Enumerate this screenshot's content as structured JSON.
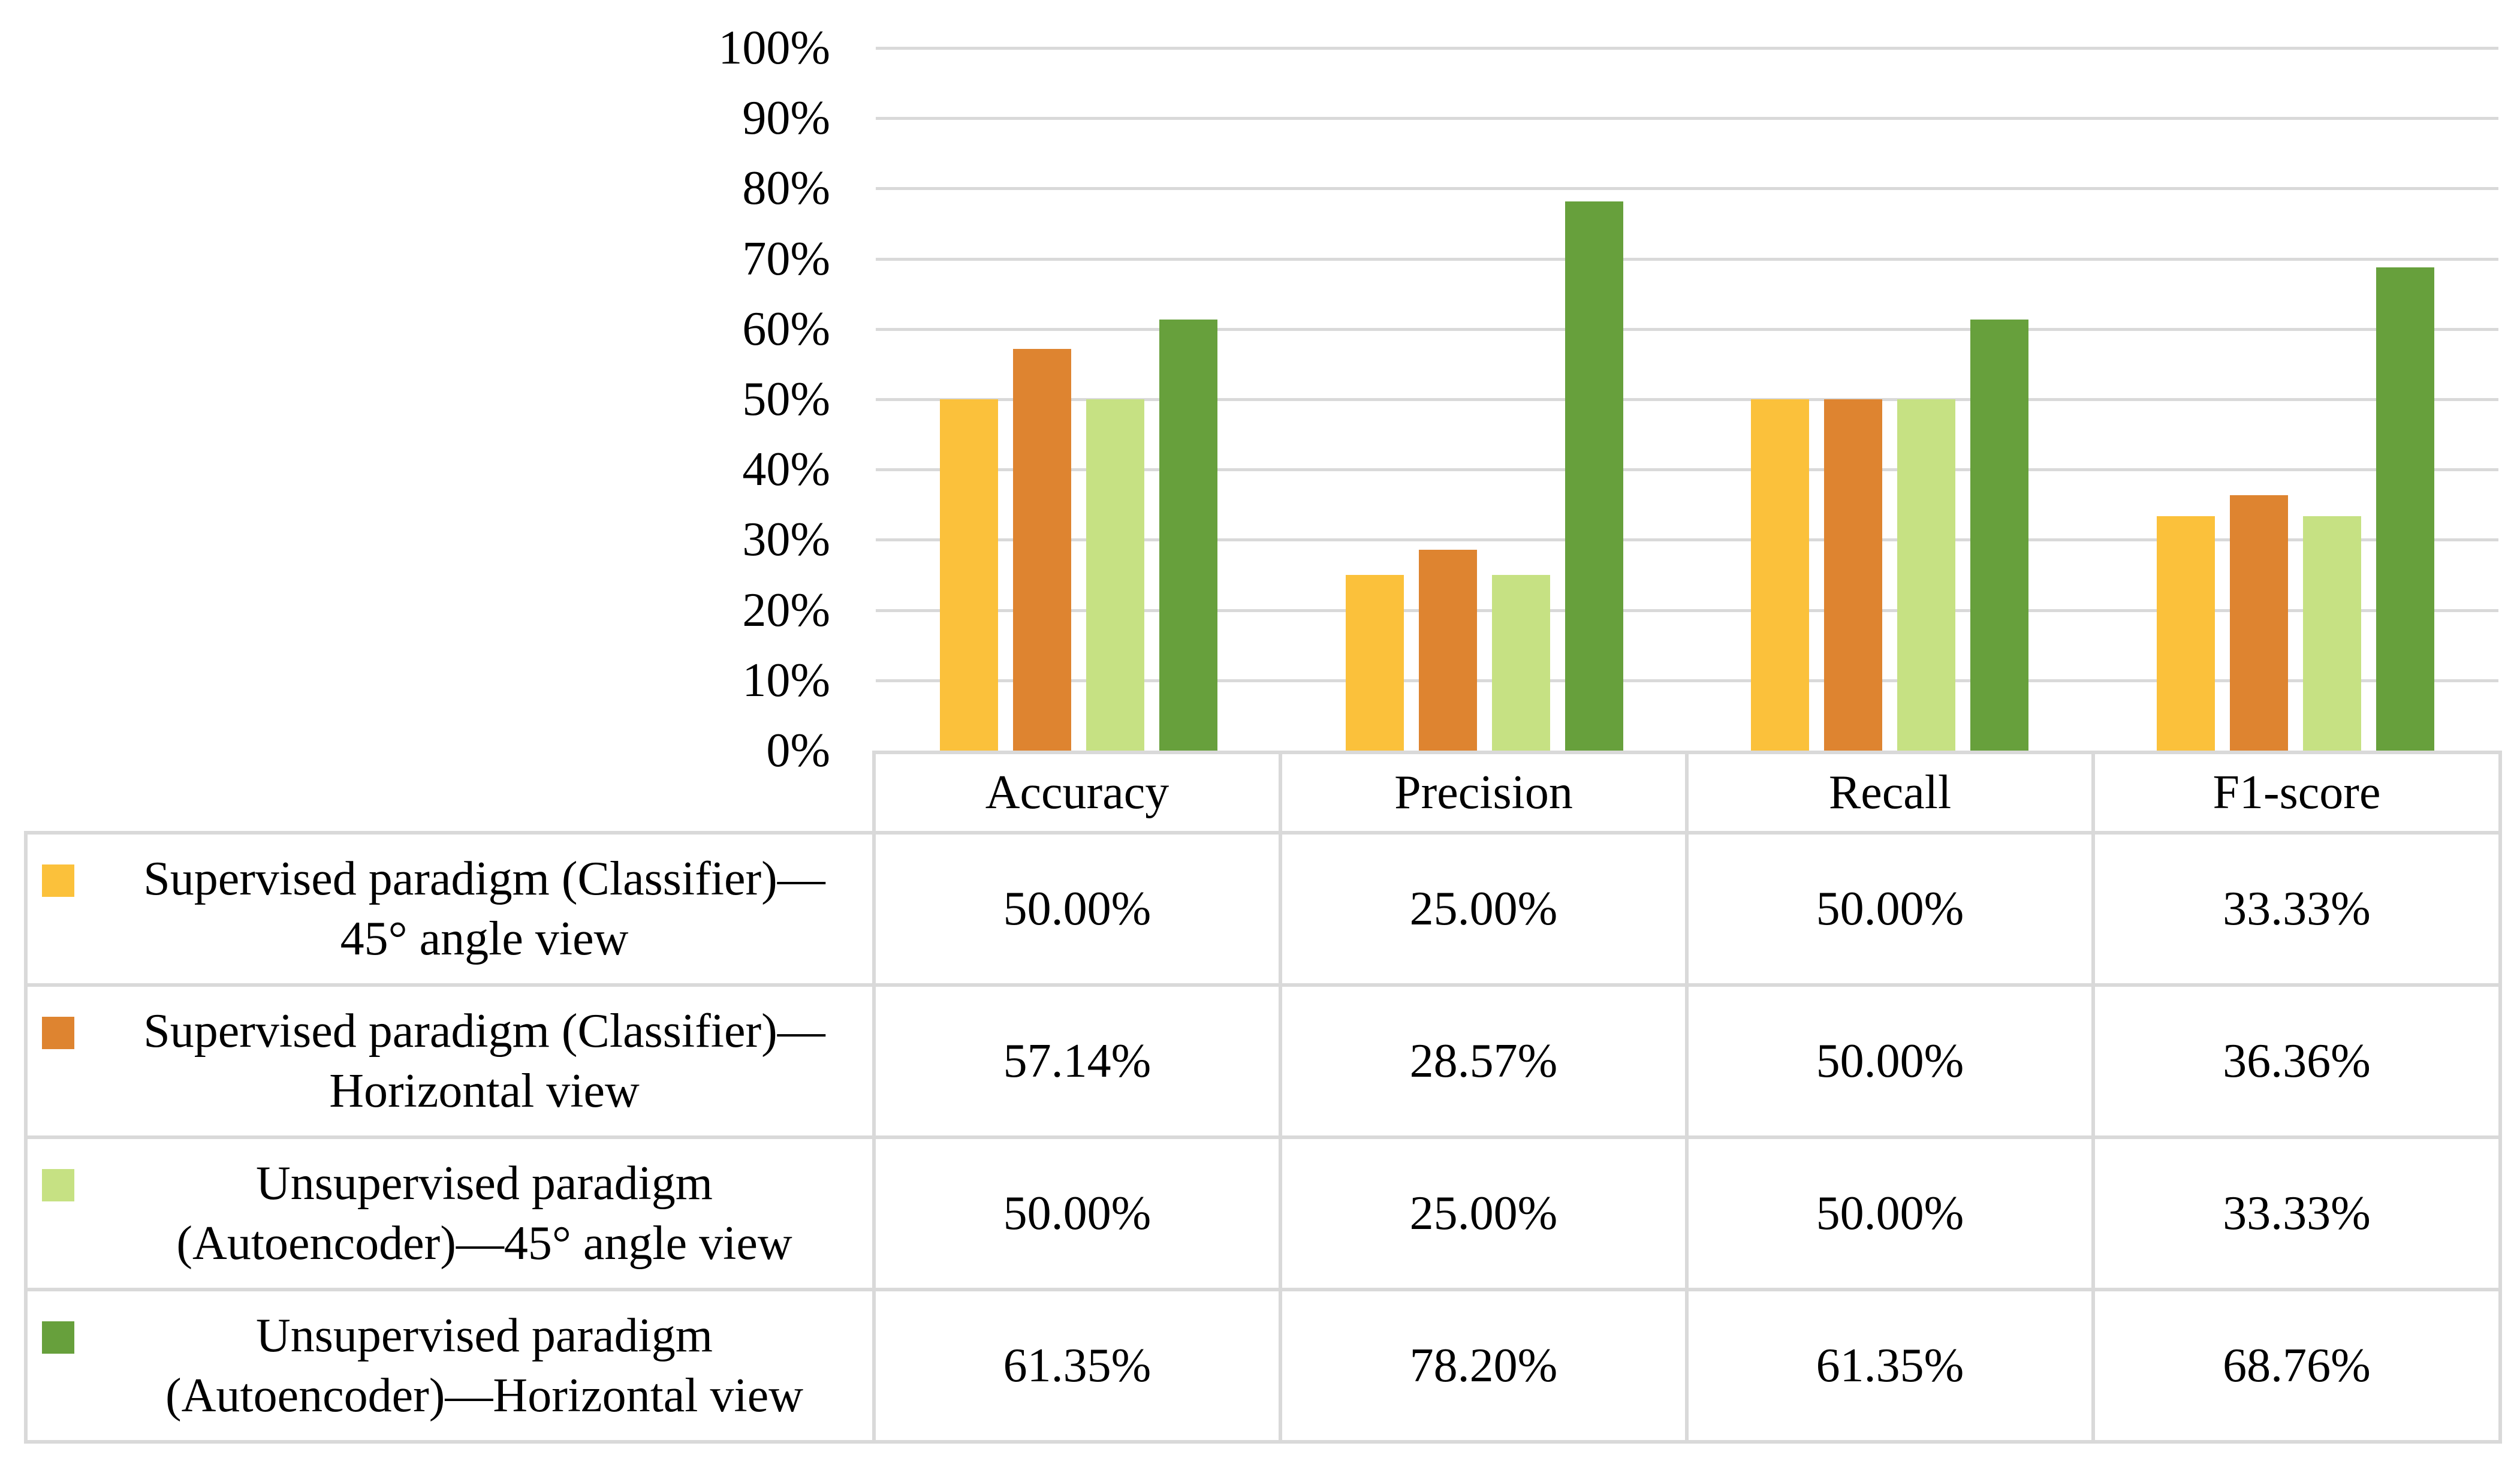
{
  "chart_data": {
    "type": "bar",
    "title": "",
    "xlabel": "",
    "ylabel": "",
    "ylim": [
      0,
      100
    ],
    "grid": "horizontal",
    "legend_position": "table-left",
    "categories": [
      "Accuracy",
      "Precision",
      "Recall",
      "F1-score"
    ],
    "yticks": [
      {
        "value": 100,
        "label": "100%"
      },
      {
        "value": 90,
        "label": "90%"
      },
      {
        "value": 80,
        "label": "80%"
      },
      {
        "value": 70,
        "label": "70%"
      },
      {
        "value": 60,
        "label": "60%"
      },
      {
        "value": 50,
        "label": "50%"
      },
      {
        "value": 40,
        "label": "40%"
      },
      {
        "value": 30,
        "label": "30%"
      },
      {
        "value": 20,
        "label": "20%"
      },
      {
        "value": 10,
        "label": "10%"
      },
      {
        "value": 0,
        "label": "0%"
      }
    ],
    "series": [
      {
        "name": "Supervised paradigm (Classifier)—45° angle view",
        "label_lines": [
          "Supervised paradigm (Classifier)—",
          "45° angle view"
        ],
        "color": "#FBC13B",
        "values": [
          50.0,
          25.0,
          50.0,
          33.33
        ],
        "display_values": [
          "50.00%",
          "25.00%",
          "50.00%",
          "33.33%"
        ]
      },
      {
        "name": "Supervised paradigm (Classifier)—Horizontal view",
        "label_lines": [
          "Supervised paradigm (Classifier)—",
          "Horizontal view"
        ],
        "color": "#DE8430",
        "values": [
          57.14,
          28.57,
          50.0,
          36.36
        ],
        "display_values": [
          "57.14%",
          "28.57%",
          "50.00%",
          "36.36%"
        ]
      },
      {
        "name": "Unsupervised paradigm (Autoencoder)—45° angle view",
        "label_lines": [
          "Unsupervised paradigm",
          "(Autoencoder)—45° angle view"
        ],
        "color": "#C6E183",
        "values": [
          50.0,
          25.0,
          50.0,
          33.33
        ],
        "display_values": [
          "50.00%",
          "25.00%",
          "50.00%",
          "33.33%"
        ]
      },
      {
        "name": "Unsupervised paradigm (Autoencoder)—Horizontal view",
        "label_lines": [
          "Unsupervised paradigm",
          "(Autoencoder)—Horizontal view"
        ],
        "color": "#67A03C",
        "values": [
          61.35,
          78.2,
          61.35,
          68.76
        ],
        "display_values": [
          "61.35%",
          "78.20%",
          "61.35%",
          "68.76%"
        ]
      }
    ]
  },
  "colors": {
    "gridline": "#D9D9D9",
    "table_border": "#D9D9D9",
    "text": "#000000",
    "background": "#FFFFFF"
  }
}
